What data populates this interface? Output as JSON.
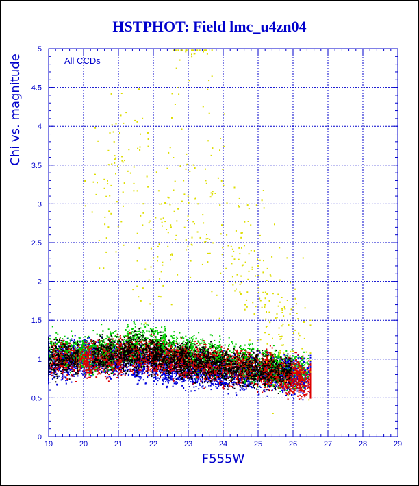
{
  "title": "HSTPHOT: Field lmc_u4zn04",
  "chart_data": {
    "type": "scatter",
    "title": "HSTPHOT: Field lmc_u4zn04",
    "xlabel": "F555W",
    "ylabel": "Chi vs. magnitude",
    "annotation": "All CCDs",
    "xlim": [
      19,
      29
    ],
    "ylim": [
      0,
      5
    ],
    "x_ticks": [
      "19",
      "20",
      "21",
      "22",
      "23",
      "24",
      "25",
      "26",
      "27",
      "28",
      "29"
    ],
    "y_ticks": [
      "0",
      "0.5",
      "1",
      "1.5",
      "2",
      "2.5",
      "3",
      "3.5",
      "4",
      "4.5",
      "5"
    ],
    "grid": true,
    "colors": {
      "axis": "#0000cc",
      "grid": "#0000cc",
      "title": "#0000cc"
    },
    "series": [
      {
        "color": "#0000dd",
        "values": [
          [
            19.2,
            0.95
          ],
          [
            19.8,
            1.02
          ],
          [
            20.5,
            1.0
          ],
          [
            21.2,
            0.98
          ],
          [
            22.0,
            0.92
          ],
          [
            22.8,
            0.88
          ],
          [
            23.5,
            0.85
          ],
          [
            24.2,
            0.82
          ],
          [
            25.0,
            0.83
          ],
          [
            25.8,
            0.8
          ],
          [
            26.2,
            0.78
          ]
        ]
      },
      {
        "color": "#00cc00",
        "values": [
          [
            19.5,
            1.1
          ],
          [
            20.3,
            1.05
          ],
          [
            21.0,
            1.15
          ],
          [
            21.8,
            1.2
          ],
          [
            22.6,
            1.1
          ],
          [
            23.4,
            1.05
          ],
          [
            24.3,
            0.98
          ],
          [
            25.1,
            0.9
          ],
          [
            25.9,
            0.85
          ]
        ]
      },
      {
        "color": "#dd0000",
        "values": [
          [
            19.6,
            1.0
          ],
          [
            20.6,
            1.0
          ],
          [
            21.5,
            1.05
          ],
          [
            22.4,
            1.0
          ],
          [
            23.2,
            0.95
          ],
          [
            24.0,
            0.9
          ],
          [
            24.9,
            0.88
          ],
          [
            25.7,
            0.82
          ],
          [
            26.3,
            0.72
          ]
        ]
      },
      {
        "color": "#dddd00",
        "values": [
          [
            20.6,
            3.2
          ],
          [
            21.3,
            3.7
          ],
          [
            22.0,
            2.3
          ],
          [
            22.6,
            2.9
          ],
          [
            23.1,
            4.9
          ],
          [
            23.5,
            3.3
          ],
          [
            24.1,
            2.6
          ],
          [
            24.8,
            2.4
          ],
          [
            25.2,
            1.7
          ],
          [
            25.6,
            1.4
          ],
          [
            26.0,
            1.1
          ]
        ]
      },
      {
        "color": "#000000",
        "values": [
          [
            19.3,
            1.0
          ],
          [
            20.8,
            1.05
          ],
          [
            21.7,
            1.1
          ],
          [
            22.5,
            1.0
          ],
          [
            23.3,
            0.95
          ],
          [
            24.4,
            0.88
          ],
          [
            25.4,
            0.85
          ]
        ]
      }
    ]
  }
}
